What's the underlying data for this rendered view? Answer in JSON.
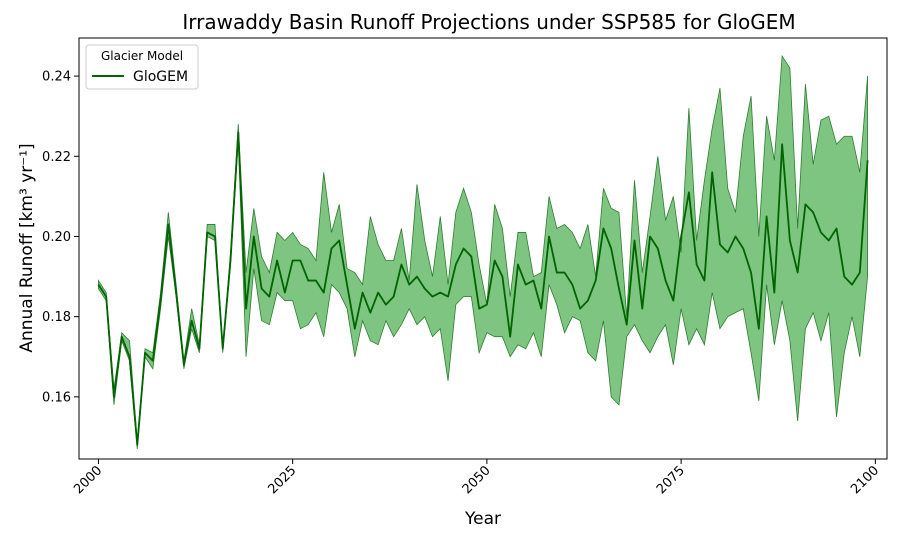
{
  "chart_data": {
    "type": "line",
    "title": "Irrawaddy Basin Runoff Projections under SSP585 for GloGEM",
    "xlabel": "Year",
    "ylabel": "Annual Runoff [km³ yr⁻¹]",
    "xlim": [
      1997.5,
      2101.5
    ],
    "ylim": [
      0.1445,
      0.2495
    ],
    "xticks": [
      2000,
      2025,
      2050,
      2075,
      2100
    ],
    "xtick_labels": [
      "2000",
      "2025",
      "2050",
      "2075",
      "2100"
    ],
    "yticks": [
      0.16,
      0.18,
      0.2,
      0.22,
      0.24
    ],
    "ytick_labels": [
      "0.16",
      "0.18",
      "0.20",
      "0.22",
      "0.24"
    ],
    "grid": false,
    "legend": {
      "title": "Glacier Model",
      "placement": "top-left"
    },
    "series": [
      {
        "name": "GloGEM",
        "color": "#006400",
        "band_color": "#4caf50",
        "x": [
          2000,
          2001,
          2002,
          2003,
          2004,
          2005,
          2006,
          2007,
          2008,
          2009,
          2010,
          2011,
          2012,
          2013,
          2014,
          2015,
          2016,
          2017,
          2018,
          2019,
          2020,
          2021,
          2022,
          2023,
          2024,
          2025,
          2026,
          2027,
          2028,
          2029,
          2030,
          2031,
          2032,
          2033,
          2034,
          2035,
          2036,
          2037,
          2038,
          2039,
          2040,
          2041,
          2042,
          2043,
          2044,
          2045,
          2046,
          2047,
          2048,
          2049,
          2050,
          2051,
          2052,
          2053,
          2054,
          2055,
          2056,
          2057,
          2058,
          2059,
          2060,
          2061,
          2062,
          2063,
          2064,
          2065,
          2066,
          2067,
          2068,
          2069,
          2070,
          2071,
          2072,
          2073,
          2074,
          2075,
          2076,
          2077,
          2078,
          2079,
          2080,
          2081,
          2082,
          2083,
          2084,
          2085,
          2086,
          2087,
          2088,
          2089,
          2090,
          2091,
          2092,
          2093,
          2094,
          2095,
          2096,
          2097,
          2098,
          2099
        ],
        "mean": [
          0.188,
          0.185,
          0.16,
          0.175,
          0.17,
          0.148,
          0.171,
          0.169,
          0.184,
          0.203,
          0.186,
          0.168,
          0.179,
          0.172,
          0.201,
          0.2,
          0.172,
          0.194,
          0.226,
          0.182,
          0.2,
          0.187,
          0.185,
          0.194,
          0.186,
          0.194,
          0.194,
          0.189,
          0.189,
          0.186,
          0.197,
          0.199,
          0.188,
          0.177,
          0.186,
          0.181,
          0.186,
          0.183,
          0.185,
          0.193,
          0.188,
          0.19,
          0.187,
          0.185,
          0.186,
          0.185,
          0.193,
          0.197,
          0.195,
          0.182,
          0.183,
          0.194,
          0.19,
          0.175,
          0.193,
          0.188,
          0.189,
          0.182,
          0.2,
          0.191,
          0.191,
          0.188,
          0.182,
          0.184,
          0.189,
          0.202,
          0.197,
          0.187,
          0.178,
          0.199,
          0.182,
          0.2,
          0.197,
          0.189,
          0.184,
          0.2,
          0.211,
          0.193,
          0.189,
          0.216,
          0.198,
          0.196,
          0.2,
          0.197,
          0.191,
          0.177,
          0.205,
          0.186,
          0.223,
          0.199,
          0.191,
          0.208,
          0.206,
          0.201,
          0.199,
          0.202,
          0.19,
          0.188,
          0.191,
          0.219
        ],
        "lower": [
          0.187,
          0.184,
          0.158,
          0.174,
          0.169,
          0.147,
          0.17,
          0.167,
          0.182,
          0.2,
          0.185,
          0.167,
          0.177,
          0.171,
          0.2,
          0.199,
          0.171,
          0.193,
          0.224,
          0.17,
          0.192,
          0.179,
          0.178,
          0.186,
          0.184,
          0.184,
          0.177,
          0.178,
          0.181,
          0.175,
          0.188,
          0.186,
          0.182,
          0.17,
          0.179,
          0.174,
          0.173,
          0.179,
          0.175,
          0.178,
          0.182,
          0.178,
          0.18,
          0.175,
          0.177,
          0.164,
          0.183,
          0.185,
          0.185,
          0.171,
          0.176,
          0.175,
          0.175,
          0.17,
          0.173,
          0.172,
          0.176,
          0.17,
          0.188,
          0.183,
          0.176,
          0.18,
          0.179,
          0.171,
          0.169,
          0.179,
          0.16,
          0.158,
          0.175,
          0.178,
          0.174,
          0.171,
          0.175,
          0.178,
          0.168,
          0.182,
          0.173,
          0.177,
          0.173,
          0.186,
          0.177,
          0.18,
          0.181,
          0.182,
          0.171,
          0.159,
          0.188,
          0.173,
          0.184,
          0.174,
          0.154,
          0.177,
          0.181,
          0.174,
          0.181,
          0.155,
          0.171,
          0.18,
          0.17,
          0.19
        ],
        "upper": [
          0.189,
          0.186,
          0.162,
          0.176,
          0.174,
          0.149,
          0.172,
          0.171,
          0.186,
          0.206,
          0.188,
          0.169,
          0.182,
          0.173,
          0.203,
          0.203,
          0.172,
          0.196,
          0.228,
          0.191,
          0.207,
          0.195,
          0.191,
          0.201,
          0.199,
          0.201,
          0.198,
          0.197,
          0.194,
          0.216,
          0.201,
          0.208,
          0.192,
          0.191,
          0.188,
          0.205,
          0.198,
          0.194,
          0.194,
          0.202,
          0.189,
          0.213,
          0.199,
          0.19,
          0.205,
          0.188,
          0.206,
          0.212,
          0.206,
          0.193,
          0.183,
          0.208,
          0.202,
          0.185,
          0.201,
          0.201,
          0.19,
          0.191,
          0.21,
          0.202,
          0.203,
          0.201,
          0.197,
          0.203,
          0.19,
          0.212,
          0.207,
          0.206,
          0.18,
          0.214,
          0.191,
          0.205,
          0.22,
          0.204,
          0.21,
          0.196,
          0.232,
          0.199,
          0.214,
          0.227,
          0.237,
          0.212,
          0.206,
          0.225,
          0.235,
          0.2,
          0.23,
          0.219,
          0.245,
          0.242,
          0.202,
          0.238,
          0.218,
          0.229,
          0.23,
          0.223,
          0.225,
          0.225,
          0.216,
          0.24
        ]
      }
    ]
  }
}
